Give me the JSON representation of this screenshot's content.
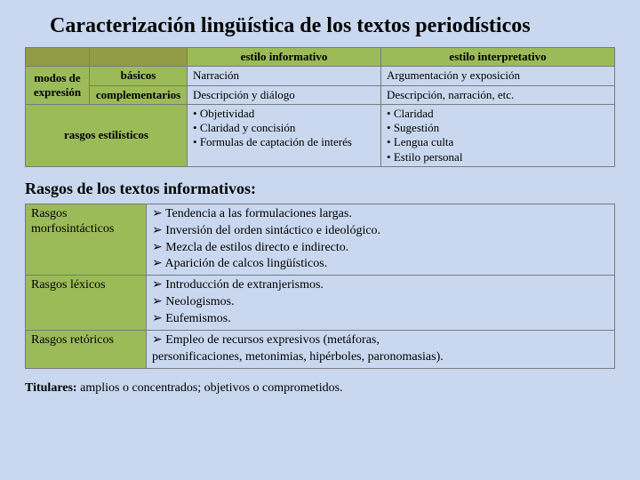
{
  "title": "Caracterización lingüística de los textos periodísticos",
  "table1": {
    "headers": {
      "col3": "estilo informativo",
      "col4": "estilo interpretativo"
    },
    "leftspan": "modos de expresión",
    "row1": {
      "c2": "básicos",
      "c3": "Narración",
      "c4": "Argumentación y exposición"
    },
    "row2": {
      "c2": "complementarios",
      "c3": "Descripción y diálogo",
      "c4": "Descripción, narración, etc."
    },
    "row3": {
      "label": "rasgos estilísticos",
      "left": {
        "b1": "Objetividad",
        "b2": "Claridad y concisión",
        "b3": "Formulas de captación de interés"
      },
      "right": {
        "b1": "Claridad",
        "b2": "Sugestión",
        "b3": "Lengua culta",
        "b4": "Estilo personal"
      }
    }
  },
  "section_title": "Rasgos de los textos informativos:",
  "table2": {
    "r1": {
      "label": "Rasgos morfosintácticos",
      "items": {
        "i1": "Tendencia a las formulaciones largas.",
        "i2": "Inversión del orden sintáctico e ideológico.",
        "i3": "Mezcla de estilos directo e indirecto.",
        "i4": "Aparición de calcos lingüísticos."
      }
    },
    "r2": {
      "label": "Rasgos léxicos",
      "items": {
        "i1": "Introducción de extranjerismos.",
        "i2": "Neologismos.",
        "i3": "Eufemismos."
      }
    },
    "r3": {
      "label": "Rasgos retóricos",
      "items": {
        "i1": "Empleo de recursos expresivos (metáforas,",
        "i2_plain": "personificaciones, metonimias, hipérboles, paronomasias)."
      }
    }
  },
  "titulares": {
    "bold": "Titulares:",
    "rest": " amplios o concentrados; objetivos o comprometidos."
  }
}
